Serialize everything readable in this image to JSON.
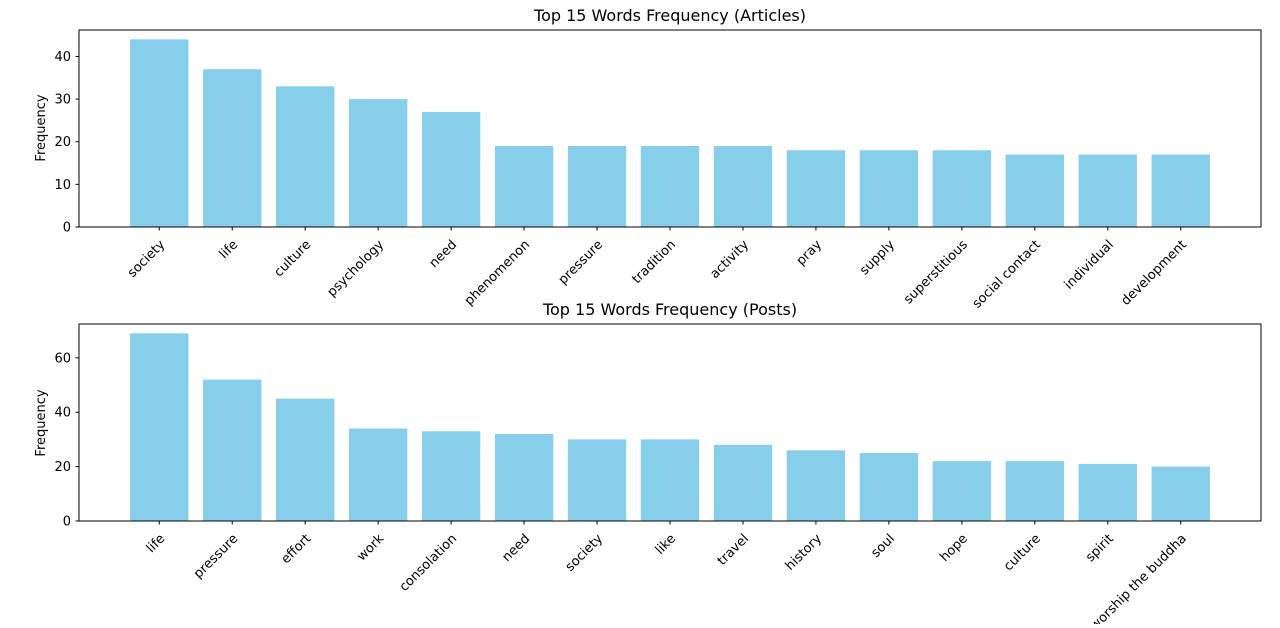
{
  "chart_data": [
    {
      "type": "bar",
      "title": "Top 15 Words Frequency (Articles)",
      "xlabel": "",
      "ylabel": "Frequency",
      "categories": [
        "society",
        "life",
        "culture",
        "psychology",
        "need",
        "phenomenon",
        "pressure",
        "tradition",
        "activity",
        "pray",
        "supply",
        "superstitious",
        "social contact",
        "individual",
        "development"
      ],
      "values": [
        44,
        37,
        33,
        30,
        27,
        19,
        19,
        19,
        19,
        18,
        18,
        18,
        17,
        17,
        17
      ],
      "ylim": [
        0,
        46.2
      ],
      "yticks": [
        0,
        10,
        20,
        30,
        40
      ],
      "grid": false,
      "color": "#87ceeb"
    },
    {
      "type": "bar",
      "title": "Top 15 Words Frequency (Posts)",
      "xlabel": "",
      "ylabel": "Frequency",
      "categories": [
        "life",
        "pressure",
        "effort",
        "work",
        "consolation",
        "need",
        "society",
        "like",
        "travel",
        "history",
        "soul",
        "hope",
        "culture",
        "spirit",
        "worship the buddha"
      ],
      "values": [
        69,
        52,
        45,
        34,
        33,
        32,
        30,
        30,
        28,
        26,
        25,
        22,
        22,
        21,
        20
      ],
      "ylim": [
        0,
        72.45
      ],
      "yticks": [
        0,
        20,
        40,
        60
      ],
      "grid": false,
      "color": "#87ceeb"
    }
  ]
}
